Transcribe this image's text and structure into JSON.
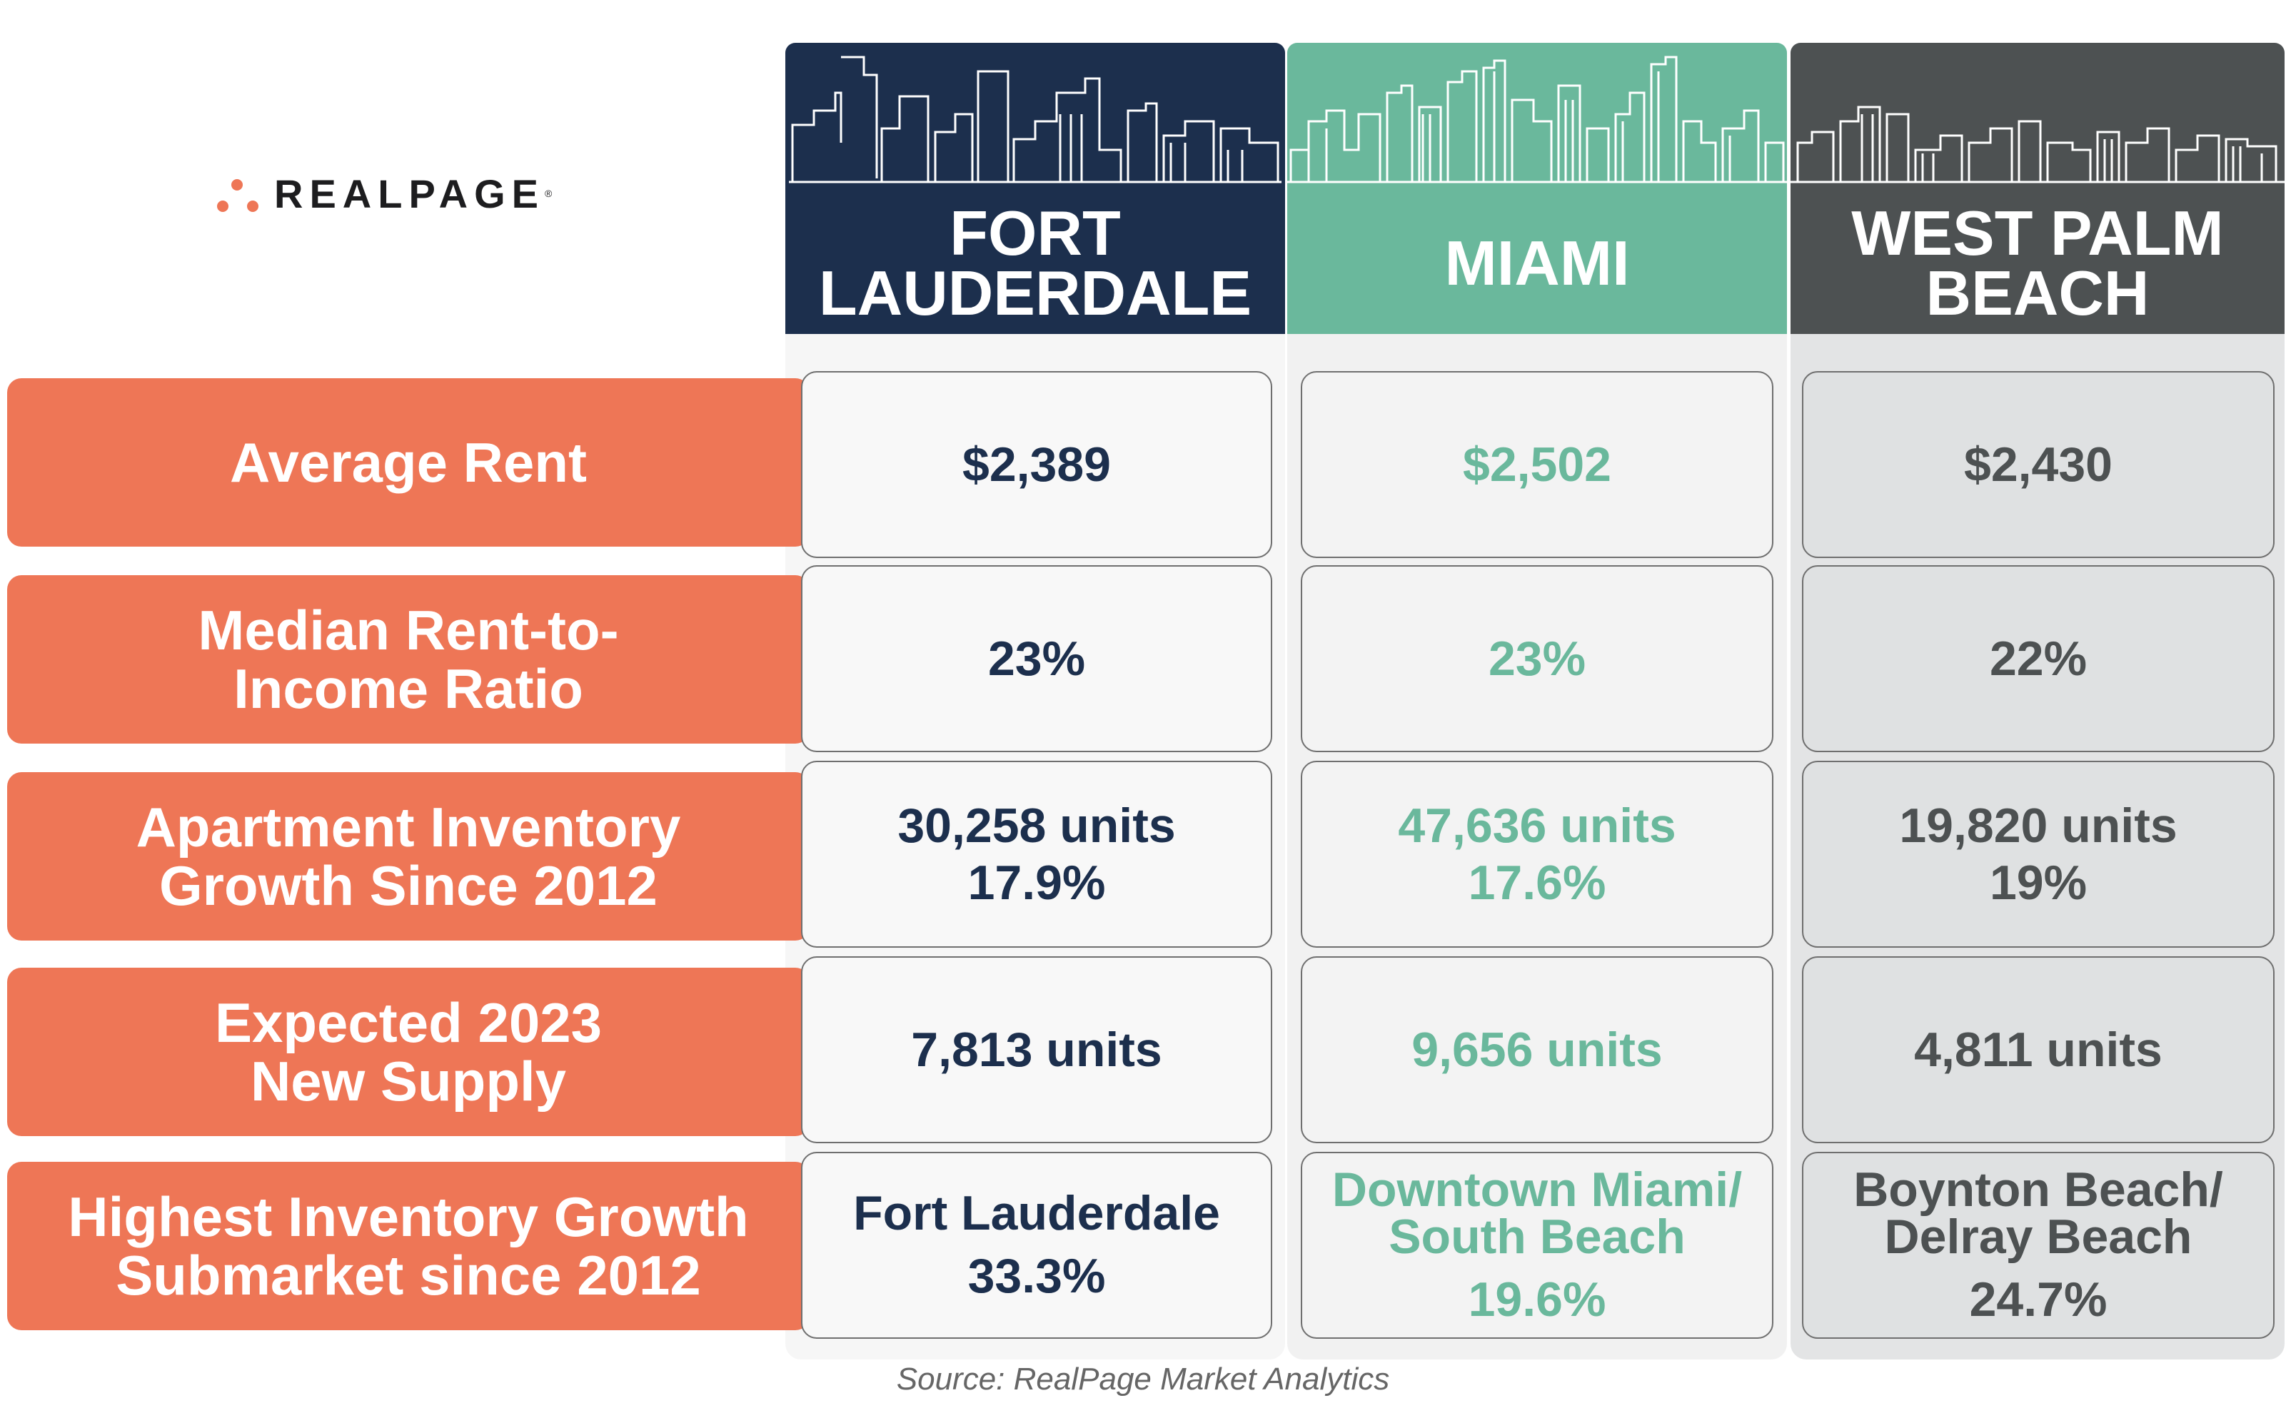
{
  "logo": {
    "wordmark": "REALPAGE",
    "registered": "®"
  },
  "columns": [
    {
      "title": "FORT\nLAUDERDALE",
      "color": "#1c2f4d"
    },
    {
      "title": "MIAMI",
      "color": "#6ab89c"
    },
    {
      "title": "WEST PALM\nBEACH",
      "color": "#4d5152"
    }
  ],
  "rows": [
    {
      "label": "Average Rent",
      "values": [
        "$2,389",
        "$2,502",
        "$2,430"
      ]
    },
    {
      "label": "Median Rent-to-\nIncome Ratio",
      "values": [
        "23%",
        "23%",
        "22%"
      ]
    },
    {
      "label": "Apartment Inventory\nGrowth Since 2012",
      "values": [
        "30,258 units\n17.9%",
        "47,636 units\n17.6%",
        "19,820 units\n19%"
      ]
    },
    {
      "label": "Expected 2023\nNew Supply",
      "values": [
        "7,813 units",
        "9,656 units",
        "4,811 units"
      ]
    },
    {
      "label": "Highest Inventory Growth\nSubmarket since 2012",
      "submarkets": [
        {
          "name": "Fort Lauderdale",
          "pct": "33.3%"
        },
        {
          "name": "Downtown Miami/\nSouth Beach",
          "pct": "19.6%"
        },
        {
          "name": "Boynton Beach/\nDelray Beach",
          "pct": "24.7%"
        }
      ]
    }
  ],
  "source": "Source: RealPage Market Analytics",
  "accent_colors": {
    "row_label": "#ee7656",
    "logo_dots": "#ee7656"
  }
}
